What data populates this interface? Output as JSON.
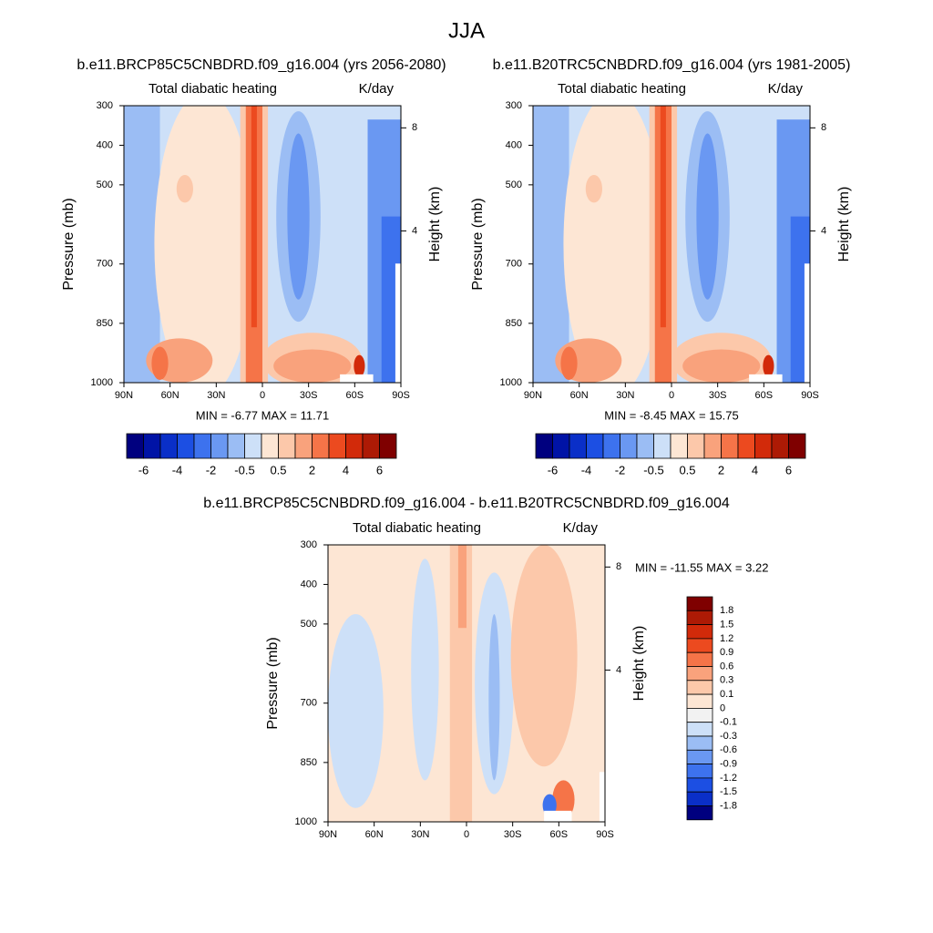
{
  "title": "JJA",
  "panels": [
    {
      "case": "b.e11.BRCP85C5CNBDRD.f09_g16.004 (yrs 2056-2080)",
      "left_label": "Total diabatic heating",
      "right_label": "K/day",
      "y_label": "Pressure (mb)",
      "y2_label": "Height (km)",
      "ylim": [
        300,
        1000
      ],
      "yticks": [
        300,
        400,
        500,
        700,
        850,
        1000
      ],
      "y2ticks": [
        8,
        4
      ],
      "xticks": [
        "90N",
        "60N",
        "30N",
        "0",
        "30S",
        "60S",
        "90S"
      ],
      "min_max": "MIN =  -6.77  MAX =  11.71",
      "colorbar": {
        "colors": [
          "#00007f",
          "#0013a6",
          "#0a2fc8",
          "#1c4fe3",
          "#3d72ee",
          "#6a98f2",
          "#9bbdf4",
          "#cde0f8",
          "#fde6d4",
          "#fcc8aa",
          "#f9a27c",
          "#f57448",
          "#ec4a1f",
          "#d22a0a",
          "#ad1a05",
          "#7f0000"
        ],
        "labels": [
          -6,
          -4,
          -2,
          -0.5,
          0.5,
          2,
          4,
          6
        ]
      }
    },
    {
      "case": "b.e11.B20TRC5CNBDRD.f09_g16.004 (yrs 1981-2005)",
      "left_label": "Total diabatic heating",
      "right_label": "K/day",
      "y_label": "Pressure (mb)",
      "y2_label": "Height (km)",
      "ylim": [
        300,
        1000
      ],
      "yticks": [
        300,
        400,
        500,
        700,
        850,
        1000
      ],
      "y2ticks": [
        8,
        4
      ],
      "xticks": [
        "90N",
        "60N",
        "30N",
        "0",
        "30S",
        "60S",
        "90S"
      ],
      "min_max": "MIN =  -8.45  MAX =  15.75",
      "colorbar": {
        "colors": [
          "#00007f",
          "#0013a6",
          "#0a2fc8",
          "#1c4fe3",
          "#3d72ee",
          "#6a98f2",
          "#9bbdf4",
          "#cde0f8",
          "#fde6d4",
          "#fcc8aa",
          "#f9a27c",
          "#f57448",
          "#ec4a1f",
          "#d22a0a",
          "#ad1a05",
          "#7f0000"
        ],
        "labels": [
          -6,
          -4,
          -2,
          -0.5,
          0.5,
          2,
          4,
          6
        ]
      }
    },
    {
      "case": "b.e11.BRCP85C5CNBDRD.f09_g16.004 - b.e11.B20TRC5CNBDRD.f09_g16.004",
      "left_label": "Total diabatic heating",
      "right_label": "K/day",
      "y_label": "Pressure (mb)",
      "y2_label": "Height (km)",
      "ylim": [
        300,
        1000
      ],
      "yticks": [
        300,
        400,
        500,
        700,
        850,
        1000
      ],
      "y2ticks": [
        8,
        4
      ],
      "xticks": [
        "90N",
        "60N",
        "30N",
        "0",
        "30S",
        "60S",
        "90S"
      ],
      "min_max": "MIN = -11.55  MAX =   3.22",
      "colorbar": {
        "colors": [
          "#7f0000",
          "#ad1a05",
          "#d22a0a",
          "#ec4a1f",
          "#f57448",
          "#f9a27c",
          "#fcc8aa",
          "#fde6d4",
          "#f2f2f2",
          "#cde0f8",
          "#9bbdf4",
          "#6a98f2",
          "#3d72ee",
          "#1c4fe3",
          "#0a2fc8",
          "#00007f"
        ],
        "labels": [
          1.8,
          1.5,
          1.2,
          0.9,
          0.6,
          0.3,
          0.1,
          0,
          -0.1,
          -0.3,
          -0.6,
          -0.9,
          -1.2,
          -1.5,
          -1.8
        ]
      }
    }
  ]
}
